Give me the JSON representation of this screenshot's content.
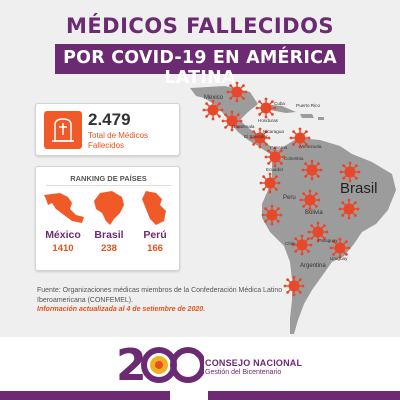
{
  "header": {
    "title_line1": "MÉDICOS FALLECIDOS",
    "title_line2": "POR COVID-19 EN AMÉRICA LATINA"
  },
  "stat": {
    "total": "2.479",
    "label": "Total de Médicos Fallecidos",
    "icon": "tombstone-icon"
  },
  "ranking": {
    "title": "RANKING DE PAÍSES",
    "countries": [
      {
        "name": "México",
        "value": "1410"
      },
      {
        "name": "Brasil",
        "value": "238"
      },
      {
        "name": "Perú",
        "value": "166"
      }
    ]
  },
  "map": {
    "labels": {
      "mexico": "Mexico",
      "cuba": "Cuba",
      "puerto_rico": "Puerto Rico",
      "honduras": "Honduras",
      "guatemala": "Guatemala",
      "nicaragua": "Nicaragua",
      "el_salvador": "El Salvador",
      "panama": "Panama",
      "venezuela": "Venezuela",
      "colombia": "Colombia",
      "ecuador": "Ecuador",
      "peru": "Peru",
      "bolivia": "Bolivia",
      "brasil": "Brasil",
      "paraguay": "Paraguay",
      "chile": "Chile",
      "uruguay": "Uruguay",
      "argentina": "Argentina"
    },
    "colors": {
      "land": "#9c9c9c",
      "virus": "#e8472a"
    }
  },
  "source": {
    "text": "Fuente: Organizaciones médicas miembros de la Confederación Médica Latino Iberoamericana (CONFEMEL).",
    "updated": "Información actualizada al 4 de setiembre de 2020."
  },
  "footer": {
    "logo_text": "200",
    "org_name": "CONSEJO NACIONAL",
    "org_sub": "Gestión del Bicentenario"
  },
  "colors": {
    "purple": "#6b2a72",
    "orange": "#f05a28"
  }
}
